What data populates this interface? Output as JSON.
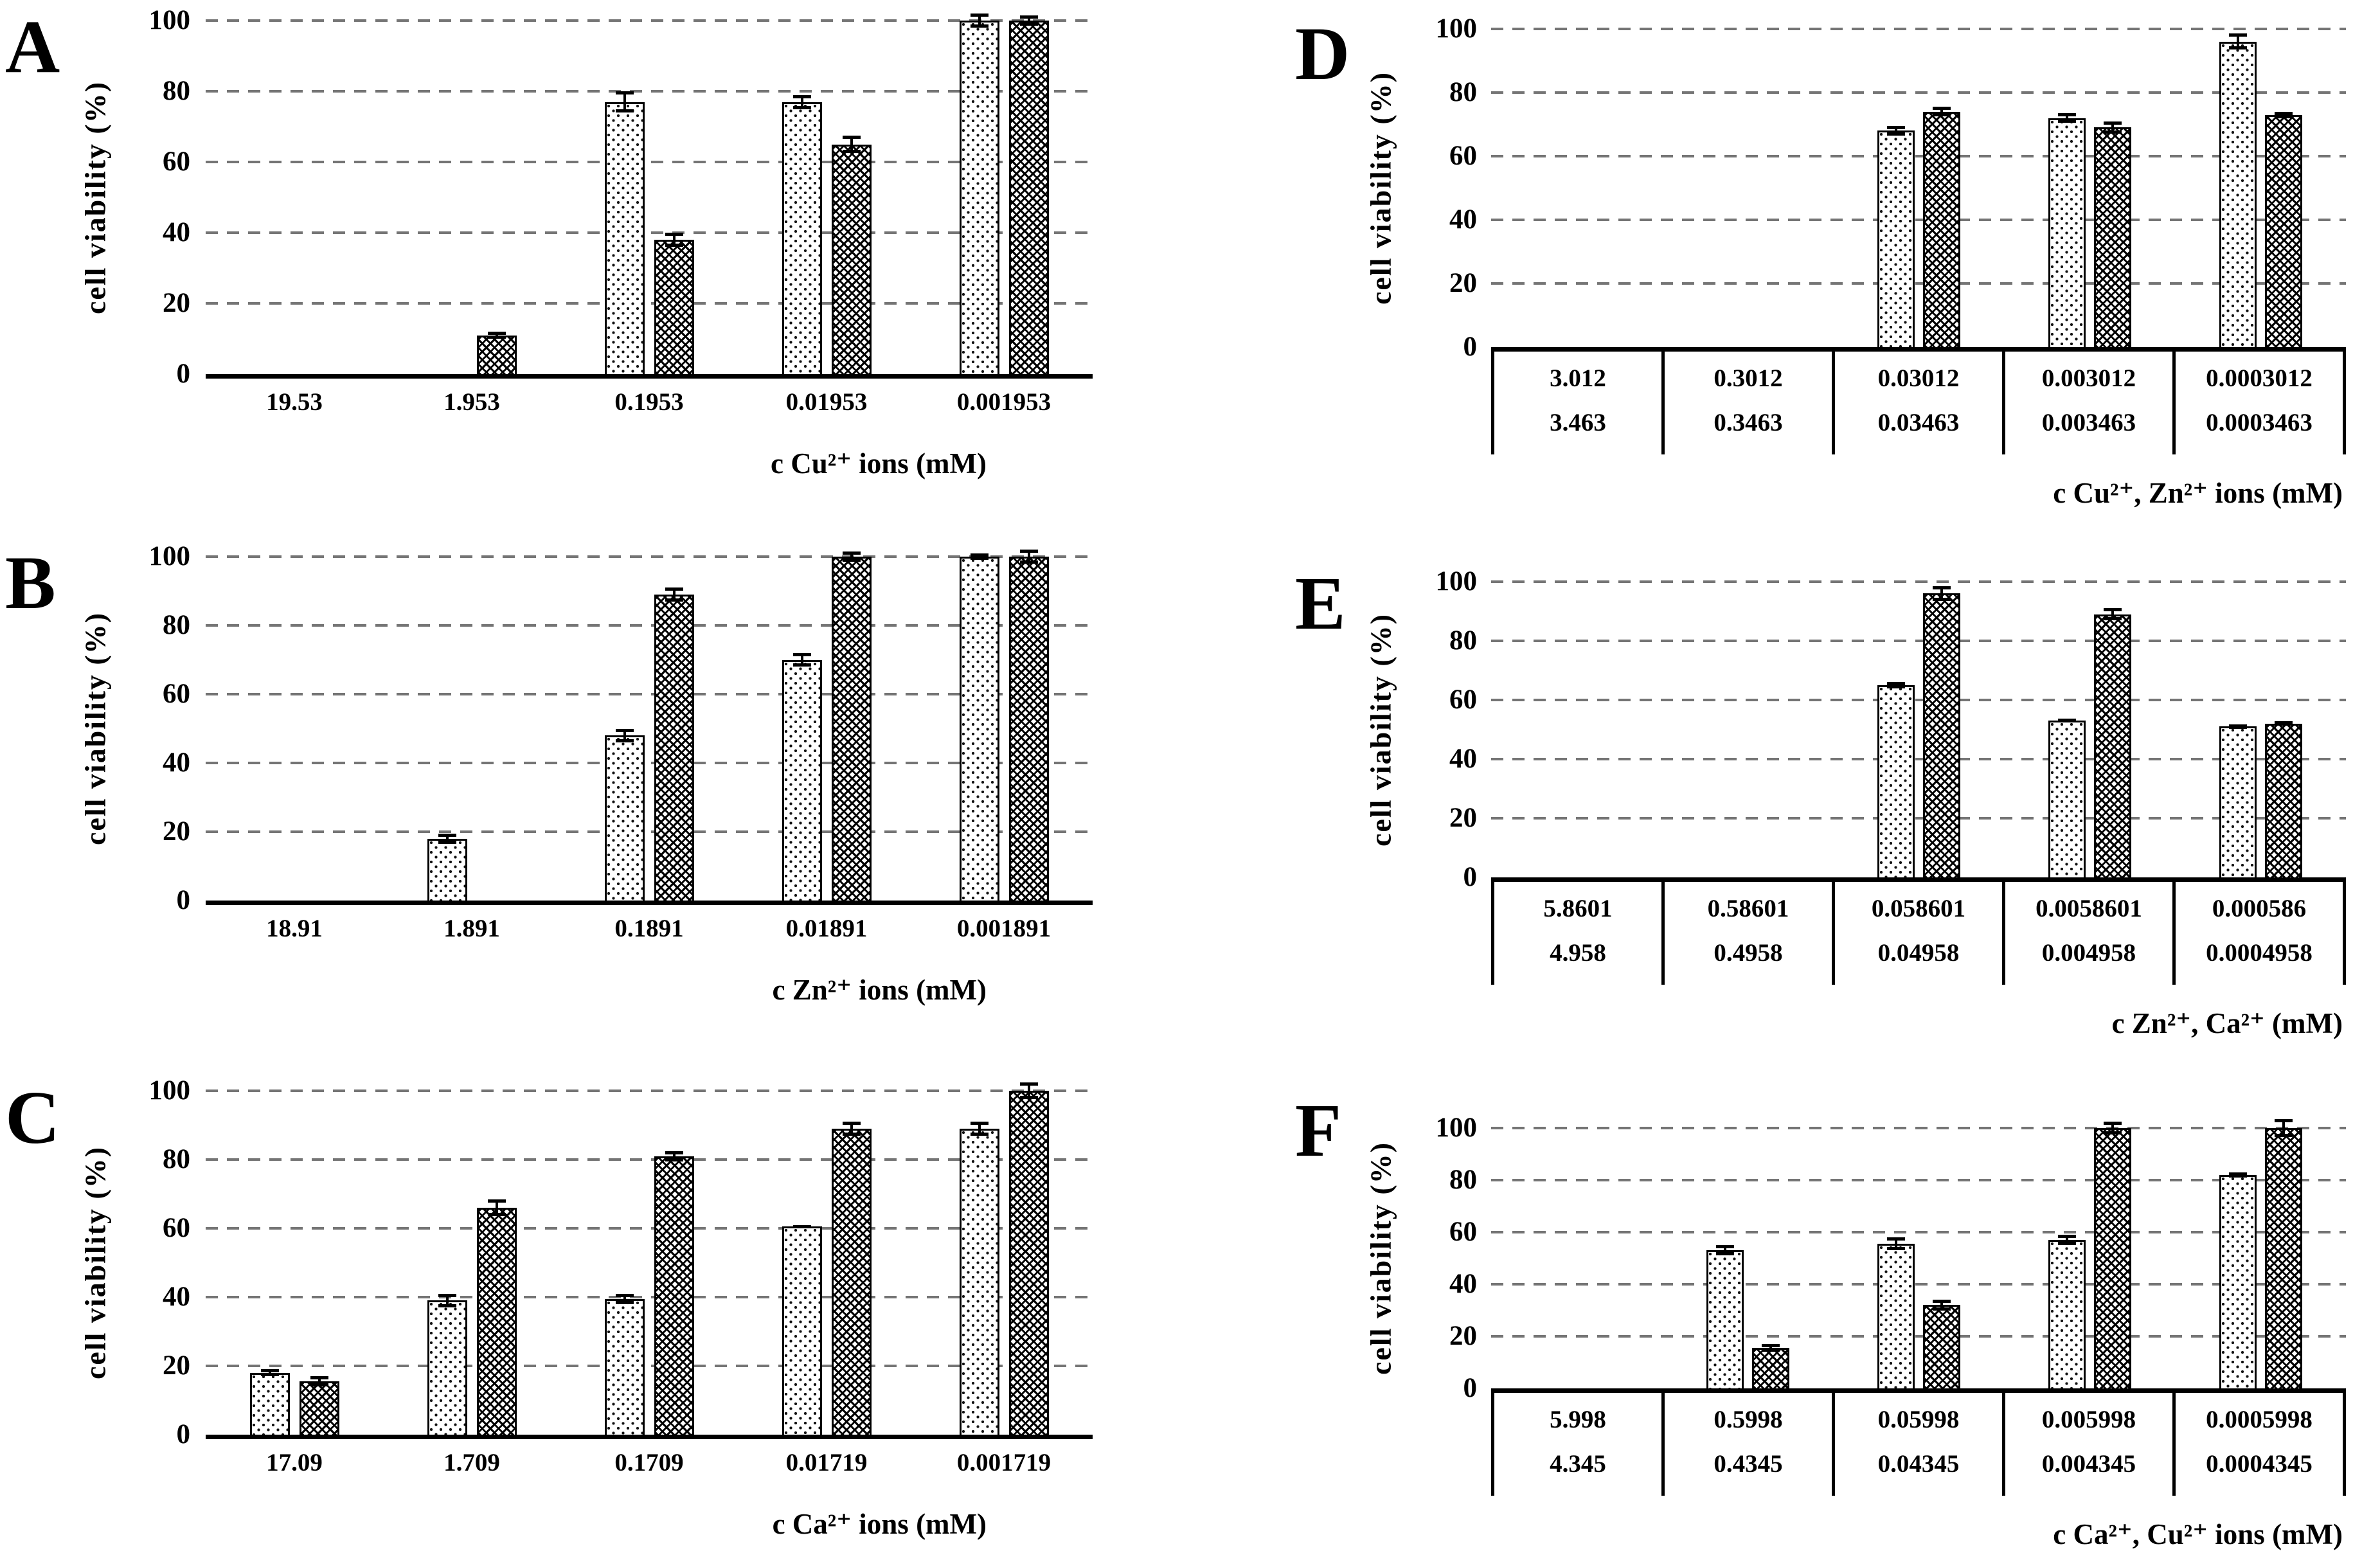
{
  "figure": {
    "background": "#ffffff",
    "colors": {
      "bar_border": "#000000",
      "gridline": "#757575",
      "axis": "#000000",
      "text": "#000000"
    },
    "yticks": [
      "100",
      "80",
      "60",
      "40",
      "20",
      "0"
    ],
    "series_patterns": [
      "dotted",
      "crosshatch"
    ],
    "legend": "none"
  },
  "chart_data": [
    {
      "type": "bar",
      "letter": "A",
      "ylabel": "cell viability (%)",
      "xlabel": "c Cu²⁺ ions (mM)",
      "ylim": [
        0,
        100
      ],
      "grid": "dashed-horizontal at 20,40,60,80,100",
      "categories": [
        "19.53",
        "1.953",
        "0.1953",
        "0.01953",
        "0.001953"
      ],
      "series": [
        {
          "name": "series-1-dotted-pattern",
          "values": [
            0,
            0,
            77,
            77,
            100
          ],
          "errors": [
            0,
            0,
            3,
            2,
            2
          ]
        },
        {
          "name": "series-2-crosshatch-pattern",
          "values": [
            0,
            11,
            38,
            65,
            100
          ],
          "errors": [
            0,
            1,
            2,
            2.5,
            1.5
          ]
        }
      ]
    },
    {
      "type": "bar",
      "letter": "B",
      "ylabel": "cell viability (%)",
      "xlabel": "c Zn²⁺ ions (mM)",
      "ylim": [
        0,
        100
      ],
      "grid": "dashed-horizontal at 20,40,60,80,100",
      "categories": [
        "18.91",
        "1.891",
        "0.1891",
        "0.01891",
        "0.001891"
      ],
      "series": [
        {
          "name": "series-1-dotted-pattern",
          "values": [
            0,
            18,
            48,
            70,
            100
          ],
          "errors": [
            0,
            1.5,
            2,
            2,
            1
          ]
        },
        {
          "name": "series-2-crosshatch-pattern",
          "values": [
            0,
            0,
            89,
            100,
            100
          ],
          "errors": [
            0,
            0,
            2,
            1.5,
            2
          ]
        }
      ]
    },
    {
      "type": "bar",
      "letter": "C",
      "ylabel": "cell viability (%)",
      "xlabel": "c Ca²⁺ ions (mM)",
      "ylim": [
        0,
        100
      ],
      "grid": "dashed-horizontal at 20,40,60,80,100",
      "categories": [
        "17.09",
        "1.709",
        "0.1709",
        "0.01719",
        "0.001719"
      ],
      "series": [
        {
          "name": "series-1-dotted-pattern",
          "values": [
            18,
            39,
            39.5,
            60.5,
            89
          ],
          "errors": [
            1,
            2,
            1.5,
            0.5,
            2
          ]
        },
        {
          "name": "series-2-crosshatch-pattern",
          "values": [
            15.5,
            66,
            81,
            89,
            100
          ],
          "errors": [
            1.5,
            2.5,
            1.5,
            2,
            2.5
          ]
        }
      ]
    },
    {
      "type": "bar",
      "letter": "D",
      "ylabel": "cell viability (%)",
      "xlabel": "c Cu²⁺, Zn²⁺ ions (mM)",
      "ylim": [
        0,
        100
      ],
      "grid": "dashed-horizontal at 20,40,60,80,100",
      "categories": [
        "3.012",
        "0.3012",
        "0.03012",
        "0.003012",
        "0.0003012"
      ],
      "categories_row2": [
        "3.463",
        "0.3463",
        "0.03463",
        "0.003463",
        "0.0003463"
      ],
      "series": [
        {
          "name": "series-1-dotted-pattern",
          "values": [
            0,
            0,
            68,
            72,
            96
          ],
          "errors": [
            0,
            0,
            1.5,
            1.5,
            2.5
          ]
        },
        {
          "name": "series-2-crosshatch-pattern",
          "values": [
            0,
            0,
            74,
            69,
            73
          ],
          "errors": [
            0,
            0,
            1.5,
            2,
            1
          ]
        }
      ]
    },
    {
      "type": "bar",
      "letter": "E",
      "ylabel": "cell viability (%)",
      "xlabel": "c Zn²⁺, Ca²⁺ (mM)",
      "ylim": [
        0,
        100
      ],
      "grid": "dashed-horizontal at 20,40,60,80,100",
      "categories": [
        "5.8601",
        "0.58601",
        "0.058601",
        "0.0058601",
        "0.000586"
      ],
      "categories_row2": [
        "4.958",
        "0.4958",
        "0.04958",
        "0.004958",
        "0.0004958"
      ],
      "series": [
        {
          "name": "series-1-dotted-pattern",
          "values": [
            0,
            0,
            65,
            53,
            51
          ],
          "errors": [
            0,
            0,
            1,
            0.7,
            0.7
          ]
        },
        {
          "name": "series-2-crosshatch-pattern",
          "values": [
            0,
            0,
            96,
            89,
            52
          ],
          "errors": [
            0,
            0,
            2.5,
            2,
            0.8
          ]
        }
      ]
    },
    {
      "type": "bar",
      "letter": "F",
      "ylabel": "cell viability (%)",
      "xlabel": "c Ca²⁺, Cu²⁺ ions (mM)",
      "ylim": [
        0,
        100
      ],
      "grid": "dashed-horizontal at 20,40,60,80,100",
      "categories": [
        "5.998",
        "0.5998",
        "0.05998",
        "0.005998",
        "0.0005998"
      ],
      "categories_row2": [
        "4.345",
        "0.4345",
        "0.04345",
        "0.004345",
        "0.0004345"
      ],
      "series": [
        {
          "name": "series-1-dotted-pattern",
          "values": [
            0,
            53,
            55.5,
            57,
            82
          ],
          "errors": [
            0,
            2,
            2.5,
            2,
            1
          ]
        },
        {
          "name": "series-2-crosshatch-pattern",
          "values": [
            0,
            15.5,
            32,
            100,
            100
          ],
          "errors": [
            0,
            1.5,
            2,
            2.5,
            3.5
          ]
        }
      ]
    }
  ]
}
